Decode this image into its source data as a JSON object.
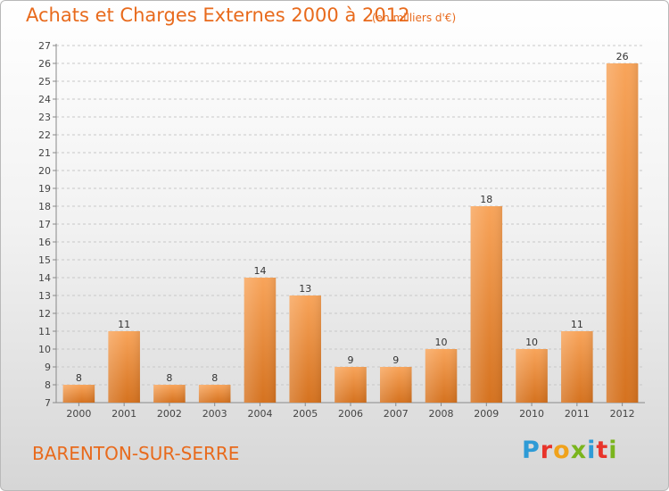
{
  "header": {
    "title": "Achats et Charges Externes 2000 à 2012",
    "subtitle": "(en milliers d'€)"
  },
  "footer": {
    "commune": "BARENTON-SUR-SERRE",
    "logo_text": "Proxiti",
    "logo_colors": [
      "#2e9bd6",
      "#e8332a",
      "#f0a21b",
      "#7ab51d",
      "#2e9bd6",
      "#e8332a",
      "#7ab51d"
    ]
  },
  "colors": {
    "accent": "#e86a1c",
    "bar_light": "#f8a45a",
    "bar_dark": "#d5721f",
    "grid": "#c8c8c8"
  },
  "chart_data": {
    "type": "bar",
    "categories": [
      "2000",
      "2001",
      "2002",
      "2003",
      "2004",
      "2005",
      "2006",
      "2007",
      "2008",
      "2009",
      "2010",
      "2011",
      "2012"
    ],
    "values": [
      8,
      11,
      8,
      8,
      14,
      13,
      9,
      9,
      10,
      18,
      10,
      11,
      26
    ],
    "title": "Achats et Charges Externes 2000 à 2012",
    "subtitle": "(en milliers d'€)",
    "ylim": [
      7,
      27
    ],
    "yticks": [
      7,
      8,
      9,
      10,
      11,
      12,
      13,
      14,
      15,
      16,
      17,
      18,
      19,
      20,
      21,
      22,
      23,
      24,
      25,
      26,
      27
    ],
    "grid": true,
    "data_labels": true
  }
}
